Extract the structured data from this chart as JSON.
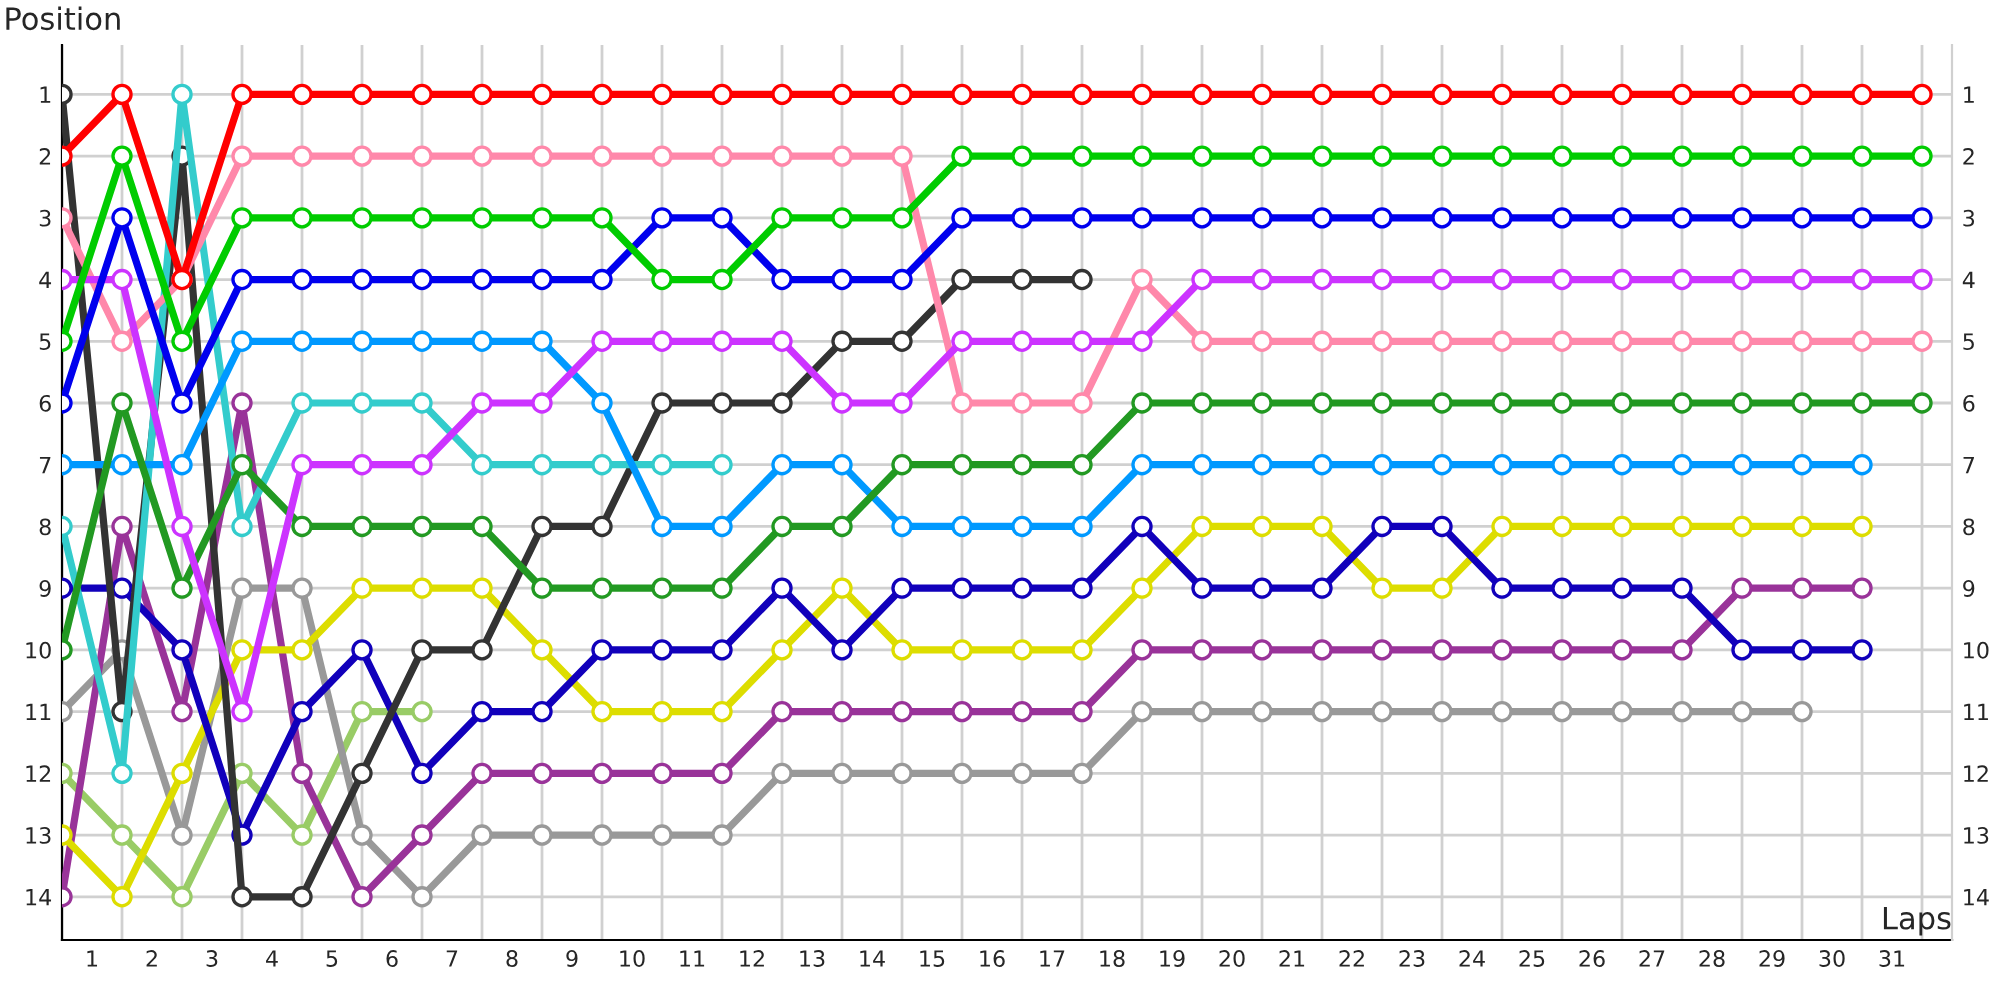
{
  "chart_data": {
    "type": "line",
    "xlabel": "Laps",
    "ylabel": "Position",
    "marker": "circle",
    "line_style": "solid",
    "grid": true,
    "x": [
      0,
      1,
      2,
      3,
      4,
      5,
      6,
      7,
      8,
      9,
      10,
      11,
      12,
      13,
      14,
      15,
      16,
      17,
      18,
      19,
      20,
      21,
      22,
      23,
      24,
      25,
      26,
      27,
      28,
      29,
      30,
      31
    ],
    "xlim": [
      0,
      31.5
    ],
    "xticks": [
      {
        "value": 0,
        "label": null
      },
      {
        "value": 0.5,
        "label": "1"
      },
      {
        "value": 1,
        "label": null
      },
      {
        "value": 1.5,
        "label": "2"
      },
      {
        "value": 2,
        "label": null
      },
      {
        "value": 2.5,
        "label": "3"
      },
      {
        "value": 3,
        "label": null
      },
      {
        "value": 3.5,
        "label": "4"
      },
      {
        "value": 4,
        "label": null
      },
      {
        "value": 4.5,
        "label": "5"
      },
      {
        "value": 5,
        "label": null
      },
      {
        "value": 5.5,
        "label": "6"
      },
      {
        "value": 6,
        "label": null
      },
      {
        "value": 6.5,
        "label": "7"
      },
      {
        "value": 7,
        "label": null
      },
      {
        "value": 7.5,
        "label": "8"
      },
      {
        "value": 8,
        "label": null
      },
      {
        "value": 8.5,
        "label": "9"
      },
      {
        "value": 9,
        "label": null
      },
      {
        "value": 9.5,
        "label": "10"
      },
      {
        "value": 10,
        "label": null
      },
      {
        "value": 10.5,
        "label": "11"
      },
      {
        "value": 11,
        "label": null
      },
      {
        "value": 11.5,
        "label": "12"
      },
      {
        "value": 12,
        "label": null
      },
      {
        "value": 12.5,
        "label": "13"
      },
      {
        "value": 13,
        "label": null
      },
      {
        "value": 13.5,
        "label": "14"
      },
      {
        "value": 14,
        "label": null
      },
      {
        "value": 14.5,
        "label": "15"
      },
      {
        "value": 15,
        "label": null
      },
      {
        "value": 15.5,
        "label": "16"
      },
      {
        "value": 16,
        "label": null
      },
      {
        "value": 16.5,
        "label": "17"
      },
      {
        "value": 17,
        "label": null
      },
      {
        "value": 17.5,
        "label": "18"
      },
      {
        "value": 18,
        "label": null
      },
      {
        "value": 18.5,
        "label": "19"
      },
      {
        "value": 19,
        "label": null
      },
      {
        "value": 19.5,
        "label": "20"
      },
      {
        "value": 20,
        "label": null
      },
      {
        "value": 20.5,
        "label": "21"
      },
      {
        "value": 21,
        "label": null
      },
      {
        "value": 21.5,
        "label": "22"
      },
      {
        "value": 22,
        "label": null
      },
      {
        "value": 22.5,
        "label": "23"
      },
      {
        "value": 23,
        "label": null
      },
      {
        "value": 23.5,
        "label": "24"
      },
      {
        "value": 24,
        "label": null
      },
      {
        "value": 24.5,
        "label": "25"
      },
      {
        "value": 25,
        "label": null
      },
      {
        "value": 25.5,
        "label": "26"
      },
      {
        "value": 26,
        "label": null
      },
      {
        "value": 26.5,
        "label": "27"
      },
      {
        "value": 27,
        "label": null
      },
      {
        "value": 27.5,
        "label": "28"
      },
      {
        "value": 28,
        "label": null
      },
      {
        "value": 28.5,
        "label": "29"
      },
      {
        "value": 29,
        "label": null
      },
      {
        "value": 29.5,
        "label": "30"
      },
      {
        "value": 30,
        "label": null
      },
      {
        "value": 30.5,
        "label": "31"
      },
      {
        "value": 31,
        "label": null
      }
    ],
    "ylim": [
      14.7,
      0.2
    ],
    "yticks": [
      1,
      2,
      3,
      4,
      5,
      6,
      7,
      8,
      9,
      10,
      11,
      12,
      13,
      14
    ],
    "y2lim": [
      14.7,
      0.2
    ],
    "y2ticks": [
      1,
      2,
      3,
      4,
      5,
      6,
      7,
      8,
      9,
      10,
      11,
      12,
      13,
      14
    ],
    "series": [
      {
        "color": "#ff0000",
        "values": [
          2,
          1,
          4,
          1,
          1,
          1,
          1,
          1,
          1,
          1,
          1,
          1,
          1,
          1,
          1,
          1,
          1,
          1,
          1,
          1,
          1,
          1,
          1,
          1,
          1,
          1,
          1,
          1,
          1,
          1,
          1,
          1
        ]
      },
      {
        "color": "#00cc00",
        "values": [
          5,
          2,
          5,
          3,
          3,
          3,
          3,
          3,
          3,
          3,
          4,
          4,
          3,
          3,
          3,
          2,
          2,
          2,
          2,
          2,
          2,
          2,
          2,
          2,
          2,
          2,
          2,
          2,
          2,
          2,
          2,
          2
        ]
      },
      {
        "color": "#0000ee",
        "values": [
          6,
          3,
          6,
          4,
          4,
          4,
          4,
          4,
          4,
          4,
          3,
          3,
          4,
          4,
          4,
          3,
          3,
          3,
          3,
          3,
          3,
          3,
          3,
          3,
          3,
          3,
          3,
          3,
          3,
          3,
          3,
          3
        ]
      },
      {
        "color": "#cc33ff",
        "values": [
          4,
          4,
          8,
          11,
          7,
          7,
          7,
          6,
          6,
          5,
          5,
          5,
          5,
          6,
          6,
          5,
          5,
          5,
          5,
          4,
          4,
          4,
          4,
          4,
          4,
          4,
          4,
          4,
          4,
          4,
          4,
          4
        ]
      },
      {
        "color": "#ff88aa",
        "values": [
          3,
          5,
          4,
          2,
          2,
          2,
          2,
          2,
          2,
          2,
          2,
          2,
          2,
          2,
          2,
          6,
          6,
          6,
          4,
          5,
          5,
          5,
          5,
          5,
          5,
          5,
          5,
          5,
          5,
          5,
          5,
          5
        ]
      },
      {
        "color": "#229922",
        "values": [
          10,
          6,
          9,
          7,
          8,
          8,
          8,
          8,
          9,
          9,
          9,
          9,
          8,
          8,
          7,
          7,
          7,
          7,
          6,
          6,
          6,
          6,
          6,
          6,
          6,
          6,
          6,
          6,
          6,
          6,
          6,
          6
        ]
      },
      {
        "color": "#0099ff",
        "values": [
          7,
          7,
          7,
          5,
          5,
          5,
          5,
          5,
          5,
          6,
          8,
          8,
          7,
          7,
          8,
          8,
          8,
          8,
          7,
          7,
          7,
          7,
          7,
          7,
          7,
          7,
          7,
          7,
          7,
          7,
          7,
          null
        ]
      },
      {
        "color": "#33cccc",
        "values": [
          8,
          12,
          1,
          8,
          6,
          6,
          6,
          7,
          7,
          7,
          7,
          7,
          null,
          null,
          null,
          null,
          null,
          null,
          null,
          null,
          null,
          null,
          null,
          null,
          null,
          null,
          null,
          null,
          null,
          null,
          null,
          null
        ]
      },
      {
        "color": "#333333",
        "values": [
          1,
          11,
          2,
          14,
          14,
          12,
          10,
          10,
          8,
          8,
          6,
          6,
          6,
          5,
          5,
          4,
          4,
          4,
          null,
          null,
          null,
          null,
          null,
          null,
          null,
          null,
          null,
          null,
          null,
          null,
          null,
          null
        ]
      },
      {
        "color": "#1100bb",
        "values": [
          9,
          9,
          10,
          13,
          11,
          10,
          12,
          11,
          11,
          10,
          10,
          10,
          9,
          10,
          9,
          9,
          9,
          9,
          8,
          9,
          9,
          9,
          8,
          8,
          9,
          9,
          9,
          9,
          10,
          10,
          10,
          null
        ]
      },
      {
        "color": "#dddd00",
        "values": [
          13,
          14,
          12,
          10,
          10,
          9,
          9,
          9,
          10,
          11,
          11,
          11,
          10,
          9,
          10,
          10,
          10,
          10,
          9,
          8,
          8,
          8,
          9,
          9,
          8,
          8,
          8,
          8,
          8,
          8,
          8,
          null
        ]
      },
      {
        "color": "#993399",
        "values": [
          14,
          8,
          11,
          6,
          12,
          14,
          13,
          12,
          12,
          12,
          12,
          12,
          11,
          11,
          11,
          11,
          11,
          11,
          10,
          10,
          10,
          10,
          10,
          10,
          10,
          10,
          10,
          10,
          9,
          9,
          9,
          null
        ]
      },
      {
        "color": "#999999",
        "values": [
          11,
          10,
          13,
          9,
          9,
          13,
          14,
          13,
          13,
          13,
          13,
          13,
          12,
          12,
          12,
          12,
          12,
          12,
          11,
          11,
          11,
          11,
          11,
          11,
          11,
          11,
          11,
          11,
          11,
          11,
          null,
          null
        ]
      },
      {
        "color": "#99cc66",
        "values": [
          12,
          13,
          14,
          12,
          13,
          11,
          11,
          null,
          null,
          null,
          null,
          null,
          null,
          null,
          null,
          null,
          null,
          null,
          null,
          null,
          null,
          null,
          null,
          null,
          null,
          null,
          null,
          null,
          null,
          null,
          null,
          null
        ]
      }
    ]
  }
}
